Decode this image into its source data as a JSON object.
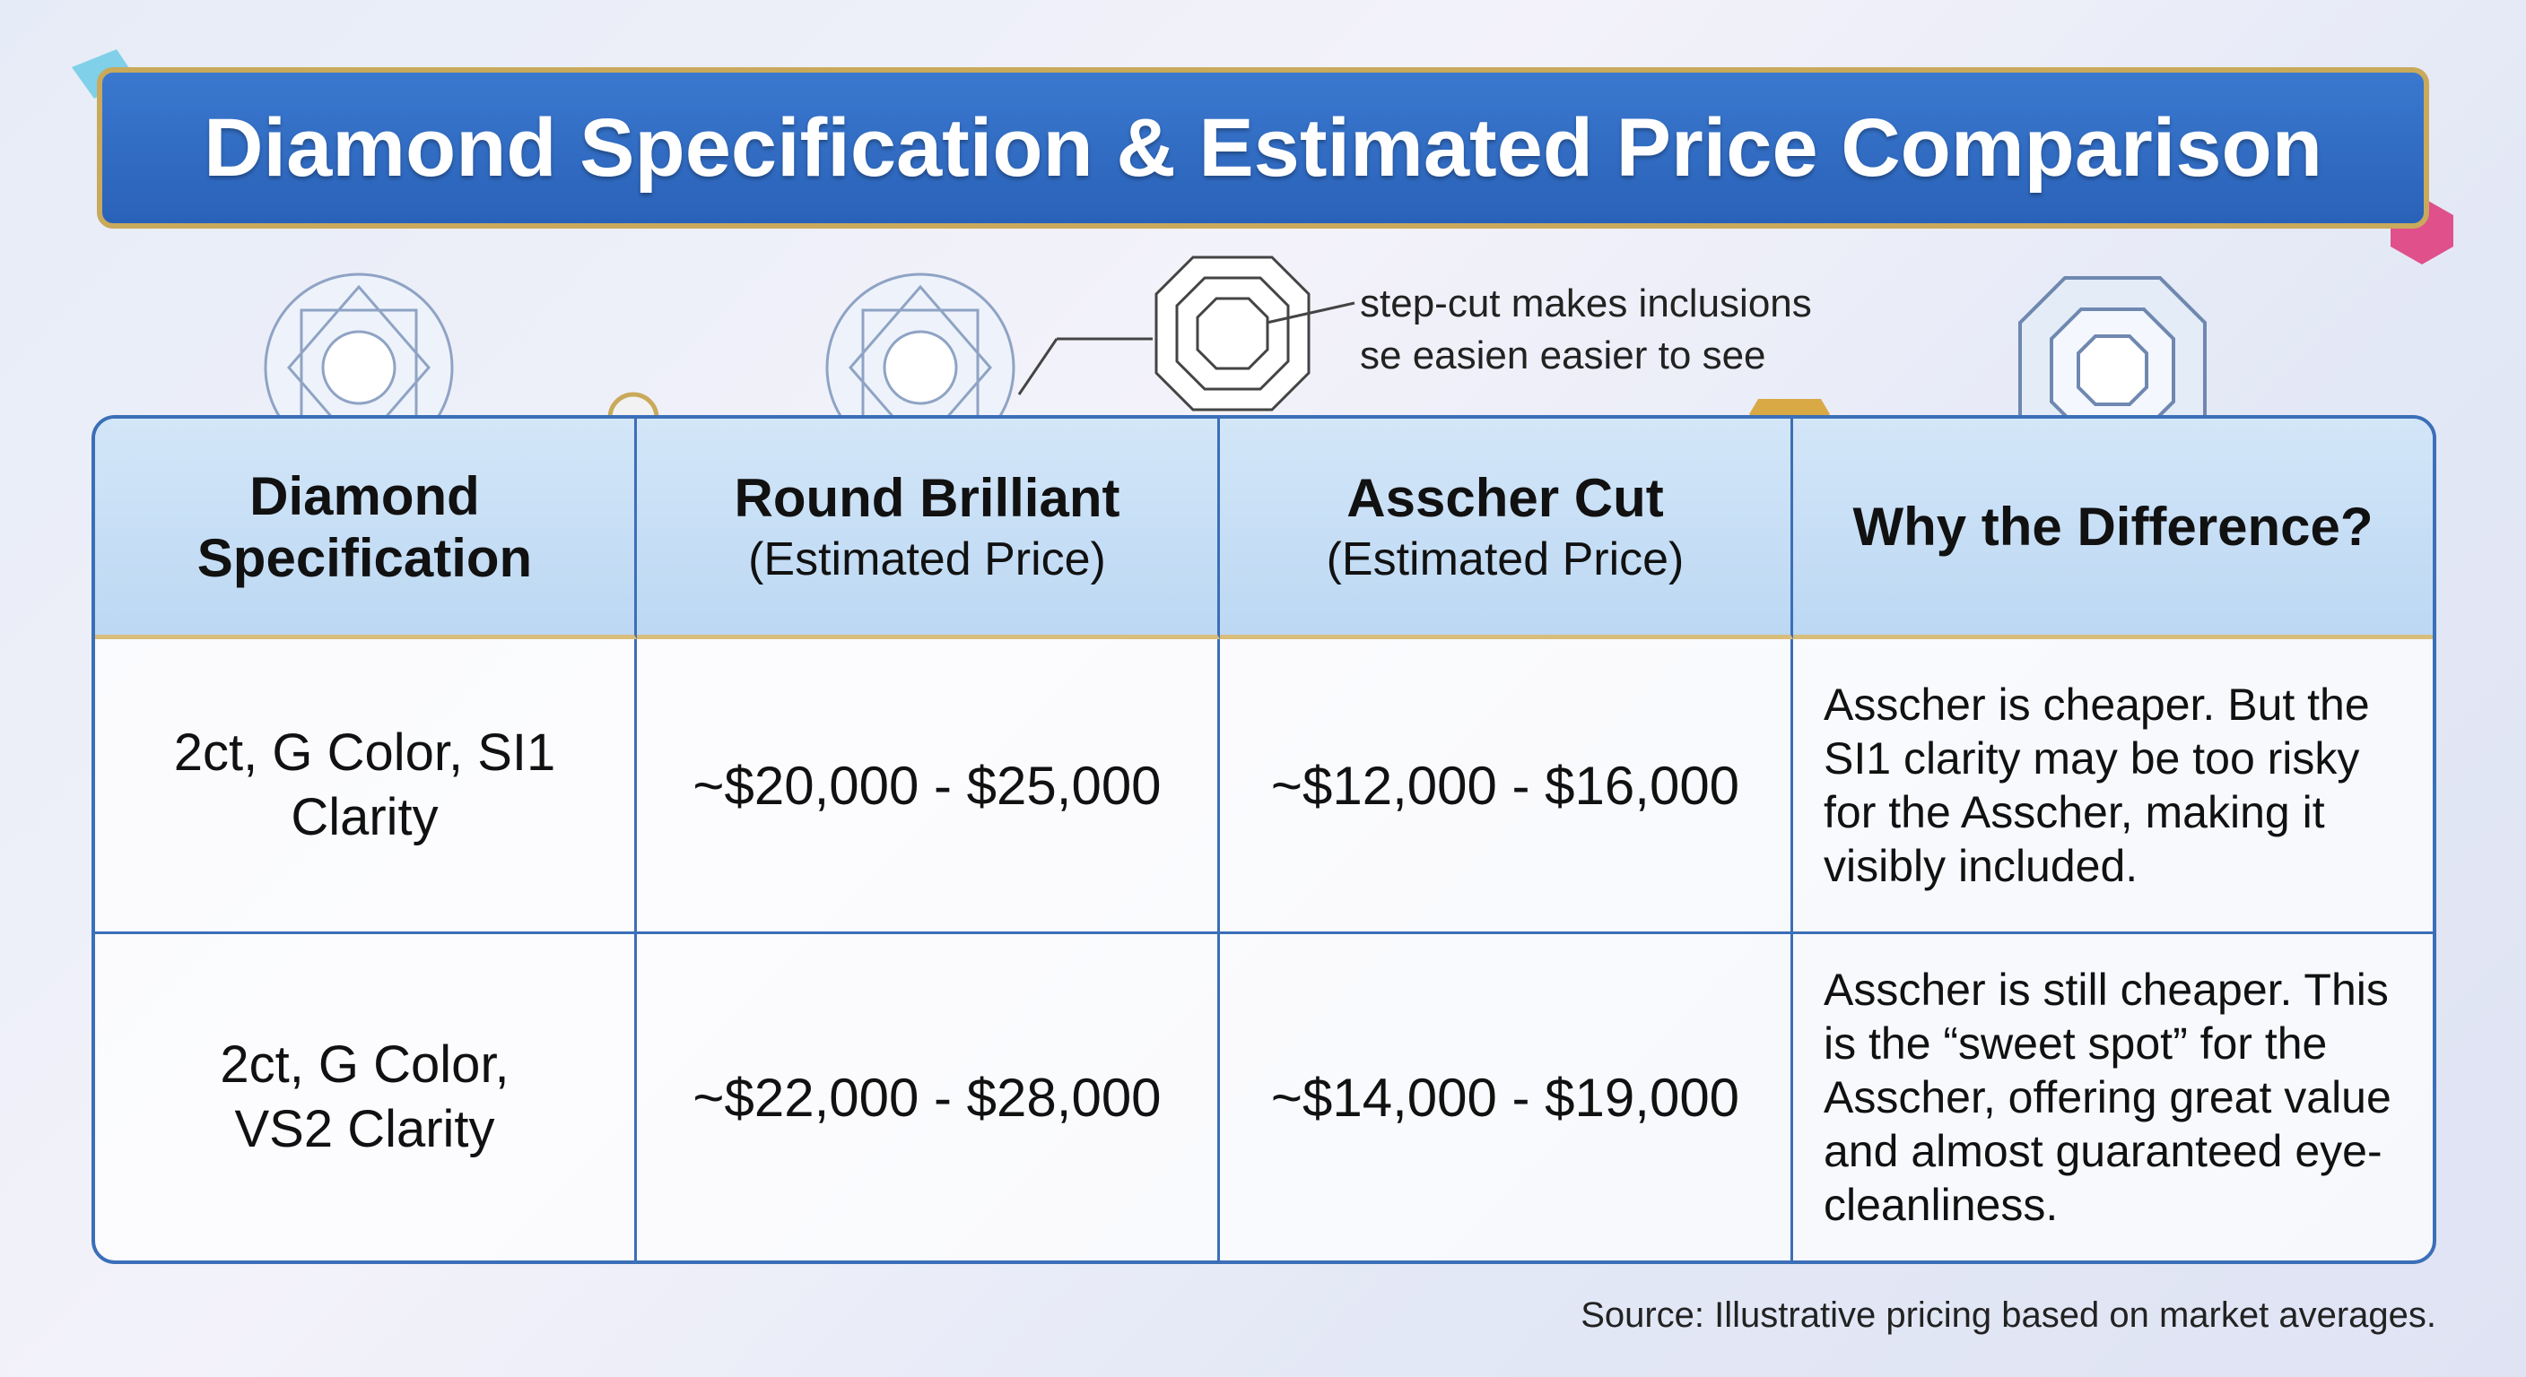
{
  "title": "Diamond Specification & Estimated Price Comparison",
  "annotation": {
    "lines": [
      "step-cut makes inclusions",
      "se easien easier to see"
    ]
  },
  "table": {
    "header": [
      {
        "title": "Diamond Specification"
      },
      {
        "title": "Round Brilliant",
        "subtitle": "(Estimated Price)"
      },
      {
        "title": "Asscher Cut",
        "subtitle": "(Estimated Price)"
      },
      {
        "title": "Why the Difference?"
      }
    ],
    "rows": [
      [
        "2ct, G Color, SI1 Clarity",
        "~$20,000 - $25,000",
        "~$12,000 - $16,000",
        "Asscher is cheaper. But the SI1 clarity may be too risky for the Asscher, making it visibly included."
      ],
      [
        "2ct, G Color, VS2 Clarity",
        "~$22,000 - $28,000",
        "~$14,000 - $19,000",
        "Asscher is still cheaper. This is the “sweet spot” for the Asscher, offering great value and almost guaranteed eye-cleanliness."
      ]
    ]
  },
  "source": "Source: Illustrative pricing based on market averages."
}
